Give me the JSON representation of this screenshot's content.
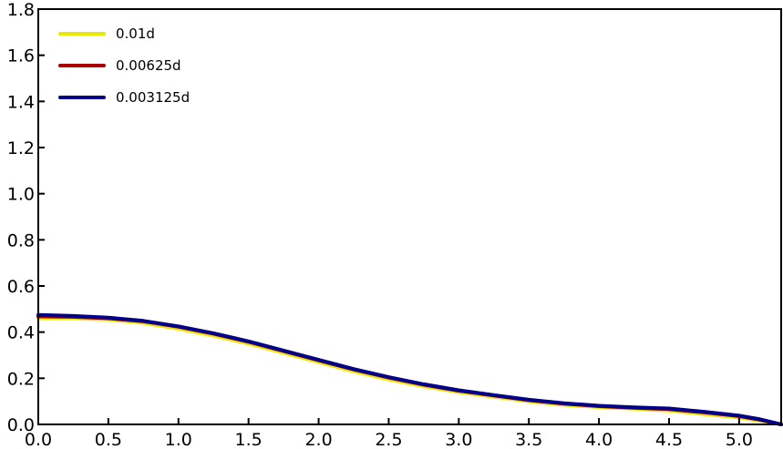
{
  "chart_data": {
    "type": "line",
    "title": "",
    "xlabel": "",
    "ylabel": "",
    "xlim": [
      0.0,
      5.3
    ],
    "ylim": [
      0.0,
      1.8
    ],
    "xticks": [
      "0.0",
      "0.5",
      "1.0",
      "1.5",
      "2.0",
      "2.5",
      "3.0",
      "3.5",
      "4.0",
      "4.5",
      "5.0"
    ],
    "yticks": [
      "0.0",
      "0.2",
      "0.4",
      "0.6",
      "0.8",
      "1.0",
      "1.2",
      "1.4",
      "1.6",
      "1.8"
    ],
    "grid": false,
    "legend_position": "top-left",
    "series": [
      {
        "name": "0.01d",
        "color": "#e8e800",
        "x": [
          0.0,
          0.25,
          0.5,
          0.75,
          1.0,
          1.25,
          1.5,
          1.75,
          2.0,
          2.25,
          2.5,
          2.75,
          3.0,
          3.25,
          3.5,
          3.75,
          4.0,
          4.25,
          4.5,
          4.75,
          5.0,
          5.15,
          5.3
        ],
        "y": [
          0.46,
          0.46,
          0.455,
          0.44,
          0.415,
          0.385,
          0.35,
          0.31,
          0.27,
          0.23,
          0.195,
          0.165,
          0.14,
          0.12,
          0.1,
          0.085,
          0.075,
          0.068,
          0.06,
          0.045,
          0.03,
          0.015,
          0.0
        ]
      },
      {
        "name": "0.00625d",
        "color": "#aa0000",
        "x": [
          0.0,
          0.25,
          0.5,
          0.75,
          1.0,
          1.25,
          1.5,
          1.75,
          2.0,
          2.25,
          2.5,
          2.75,
          3.0,
          3.25,
          3.5,
          3.75,
          4.0,
          4.25,
          4.5,
          4.75,
          5.0,
          5.15,
          5.3
        ],
        "y": [
          0.468,
          0.466,
          0.46,
          0.447,
          0.423,
          0.393,
          0.358,
          0.318,
          0.278,
          0.238,
          0.203,
          0.172,
          0.146,
          0.125,
          0.105,
          0.09,
          0.079,
          0.072,
          0.066,
          0.052,
          0.036,
          0.02,
          0.0
        ]
      },
      {
        "name": "0.003125d",
        "color": "#00008b",
        "x": [
          0.0,
          0.25,
          0.5,
          0.75,
          1.0,
          1.25,
          1.5,
          1.75,
          2.0,
          2.25,
          2.5,
          2.75,
          3.0,
          3.25,
          3.5,
          3.75,
          4.0,
          4.25,
          4.5,
          4.75,
          5.0,
          5.15,
          5.3
        ],
        "y": [
          0.475,
          0.47,
          0.463,
          0.449,
          0.425,
          0.395,
          0.36,
          0.32,
          0.28,
          0.24,
          0.205,
          0.174,
          0.148,
          0.127,
          0.107,
          0.092,
          0.081,
          0.074,
          0.069,
          0.055,
          0.038,
          0.022,
          0.0
        ]
      }
    ]
  }
}
